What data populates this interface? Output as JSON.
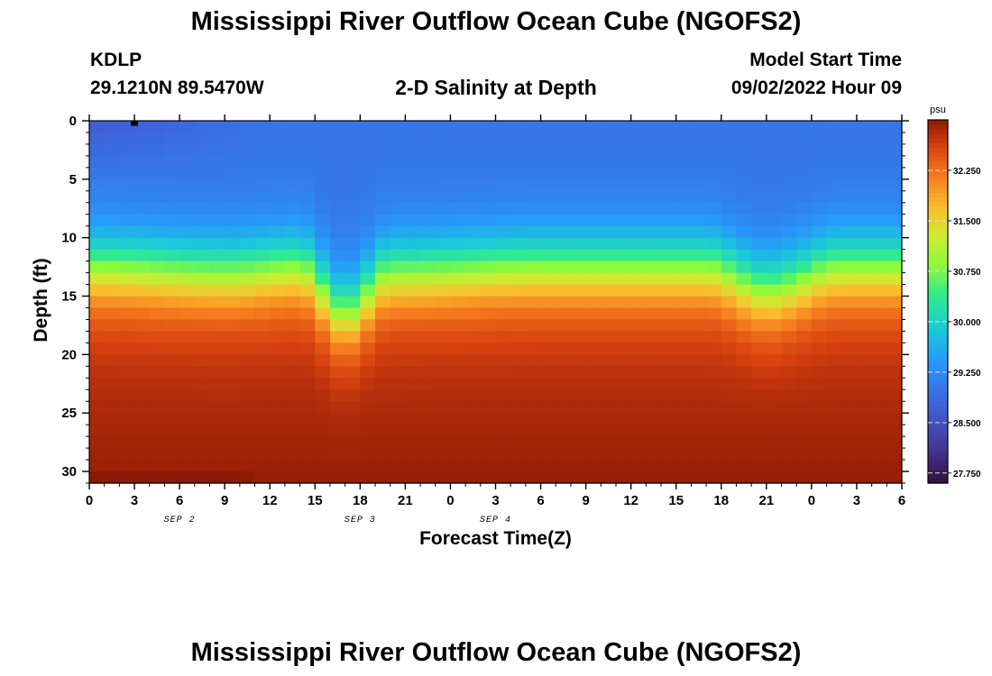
{
  "header": {
    "title": "Mississippi River Outflow Ocean Cube (NGOFS2)",
    "station_id": "KDLP",
    "coordinates": "29.1210N  89.5470W",
    "subtitle": "2-D Salinity at Depth",
    "model_start_label": "Model Start Time",
    "model_start_value": "09/02/2022 Hour 09"
  },
  "footer": {
    "title": "Mississippi River Outflow Ocean Cube (NGOFS2)"
  },
  "chart_data": {
    "type": "heatmap",
    "title": "2-D Salinity at Depth",
    "xlabel": "Forecast Time(Z)",
    "ylabel": "Depth (ft)",
    "x_tick_labels": [
      "0",
      "3",
      "6",
      "9",
      "12",
      "15",
      "18",
      "21",
      "0",
      "3",
      "6",
      "9",
      "12",
      "15",
      "18",
      "21",
      "0",
      "3",
      "6"
    ],
    "date_labels": [
      {
        "text": "SEP 2",
        "at_tick": 6
      },
      {
        "text": "SEP 3",
        "at_tick": 18
      },
      {
        "text": "SEP 4",
        "at_tick": 27
      }
    ],
    "x_range_hours": [
      0,
      54
    ],
    "ylim": [
      0,
      31
    ],
    "y_ticks": [
      0,
      5,
      10,
      15,
      20,
      25,
      30
    ],
    "colorbar": {
      "unit": "psu",
      "range": [
        27.6,
        33.0
      ],
      "ticks": [
        "32.250",
        "31.500",
        "30.750",
        "30.000",
        "29.250",
        "28.500",
        "27.750"
      ],
      "tick_values": [
        32.25,
        31.5,
        30.75,
        30.0,
        29.25,
        28.5,
        27.75
      ]
    },
    "description_model": {
      "surface_salinity_psu": 29.0,
      "bottom_salinity_psu": 32.7,
      "halocline_depth_ft_by_hour": [
        [
          0,
          12.5
        ],
        [
          9,
          13.0
        ],
        [
          14,
          12.5
        ],
        [
          17,
          16.5
        ],
        [
          20,
          13.0
        ],
        [
          30,
          12.5
        ],
        [
          41,
          12.5
        ],
        [
          45,
          14.5
        ],
        [
          50,
          12.5
        ],
        [
          54,
          12.5
        ]
      ]
    },
    "marker": {
      "x_hour": 3,
      "depth_ft": 0.2
    }
  },
  "colors": {
    "background": "#ffffff",
    "axis": "#000000"
  }
}
